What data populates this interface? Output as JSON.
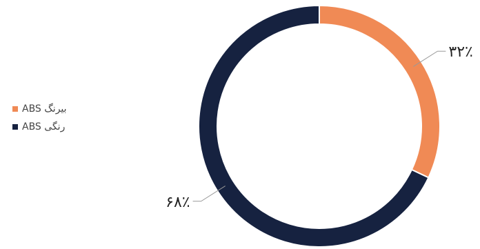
{
  "chart_data": {
    "type": "donut",
    "title": "",
    "series": [
      {
        "name": "ABS بیرنگ",
        "value": 32,
        "label": "۳۲٪",
        "color": "#f08a55"
      },
      {
        "name": "ABS رنگی",
        "value": 68,
        "label": "۶۸٪",
        "color": "#162240"
      }
    ],
    "legend_position": "left"
  }
}
